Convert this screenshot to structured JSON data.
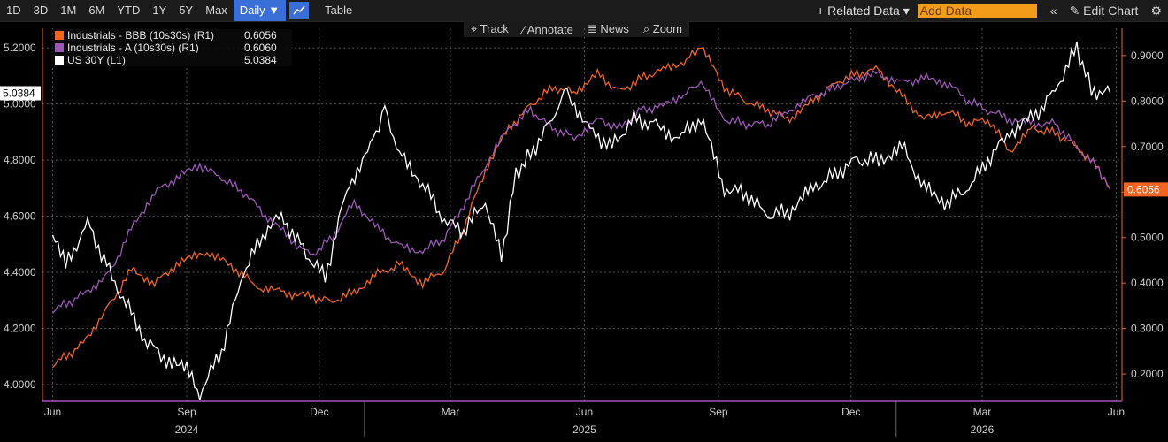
{
  "toolbar": {
    "periods": [
      "1D",
      "3D",
      "1M",
      "6M",
      "YTD",
      "1Y",
      "5Y",
      "Max"
    ],
    "frequency": "Daily ▼",
    "table": "Table",
    "related": "+ Related Data ▾",
    "add_data_placeholder": "Add Data",
    "collapse": "«",
    "edit": "✎ Edit Chart",
    "settings": "⚙"
  },
  "subtools": [
    "⌖ Track",
    "⁄ Annotate",
    "≣ News",
    "⌕ Zoom"
  ],
  "legend": [
    {
      "name": "Industrials - BBB (10s30s) (R1)",
      "value": "0.6056",
      "color": "#f26522"
    },
    {
      "name": "Industrials - A (10s30s) (R1)",
      "value": "0.6060",
      "color": "#9b59b6"
    },
    {
      "name": "US 30Y (L1)",
      "value": "5.0384",
      "color": "#ffffff"
    }
  ],
  "chart_data": {
    "type": "line",
    "x_months": [
      "Jun",
      "Sep",
      "Dec",
      "Mar",
      "Jun",
      "Sep",
      "Dec",
      "Mar",
      "Jun"
    ],
    "x_years": [
      "2024",
      "2025",
      "2026"
    ],
    "left_axis": {
      "ticks": [
        "4.0000",
        "4.2000",
        "4.4000",
        "4.6000",
        "4.8000",
        "5.0000",
        "5.2000"
      ],
      "range": [
        3.94,
        5.27
      ],
      "last_label": "5.0384"
    },
    "right_axis": {
      "ticks": [
        "0.2000",
        "0.3000",
        "0.4000",
        "0.5000",
        "0.6000",
        "0.7000",
        "0.8000",
        "0.9000"
      ],
      "range": [
        0.14,
        0.96
      ],
      "last_label": "0.6056"
    },
    "series": [
      {
        "name": "Industrials - BBB (10s30s) (R1)",
        "axis": "right",
        "color": "#f26522",
        "points": [
          [
            "2024-06-01",
            0.22
          ],
          [
            "2024-06-20",
            0.26
          ],
          [
            "2024-07-10",
            0.35
          ],
          [
            "2024-07-25",
            0.43
          ],
          [
            "2024-08-10",
            0.4
          ],
          [
            "2024-08-25",
            0.44
          ],
          [
            "2024-09-15",
            0.47
          ],
          [
            "2024-10-05",
            0.43
          ],
          [
            "2024-10-20",
            0.39
          ],
          [
            "2024-11-05",
            0.38
          ],
          [
            "2024-11-25",
            0.37
          ],
          [
            "2024-12-10",
            0.36
          ],
          [
            "2024-12-25",
            0.38
          ],
          [
            "2025-01-10",
            0.42
          ],
          [
            "2025-01-25",
            0.44
          ],
          [
            "2025-02-10",
            0.4
          ],
          [
            "2025-02-25",
            0.43
          ],
          [
            "2025-03-10",
            0.52
          ],
          [
            "2025-03-25",
            0.65
          ],
          [
            "2025-04-10",
            0.74
          ],
          [
            "2025-04-25",
            0.79
          ],
          [
            "2025-05-10",
            0.83
          ],
          [
            "2025-05-25",
            0.82
          ],
          [
            "2025-06-10",
            0.86
          ],
          [
            "2025-06-25",
            0.82
          ],
          [
            "2025-07-10",
            0.85
          ],
          [
            "2025-07-25",
            0.87
          ],
          [
            "2025-08-10",
            0.89
          ],
          [
            "2025-08-20",
            0.92
          ],
          [
            "2025-09-05",
            0.83
          ],
          [
            "2025-09-20",
            0.8
          ],
          [
            "2025-10-05",
            0.78
          ],
          [
            "2025-10-20",
            0.76
          ],
          [
            "2025-11-05",
            0.8
          ],
          [
            "2025-11-20",
            0.84
          ],
          [
            "2025-12-05",
            0.86
          ],
          [
            "2025-12-20",
            0.87
          ],
          [
            "2026-01-05",
            0.81
          ],
          [
            "2026-01-20",
            0.76
          ],
          [
            "2026-02-05",
            0.78
          ],
          [
            "2026-02-20",
            0.75
          ],
          [
            "2026-03-05",
            0.76
          ],
          [
            "2026-03-20",
            0.69
          ],
          [
            "2026-04-05",
            0.74
          ],
          [
            "2026-04-20",
            0.73
          ],
          [
            "2026-05-05",
            0.7
          ],
          [
            "2026-05-20",
            0.65
          ],
          [
            "2026-05-28",
            0.6056
          ]
        ]
      },
      {
        "name": "Industrials - A (10s30s) (R1)",
        "axis": "right",
        "color": "#9b59b6",
        "points": [
          [
            "2024-06-01",
            0.34
          ],
          [
            "2024-06-20",
            0.37
          ],
          [
            "2024-07-10",
            0.42
          ],
          [
            "2024-07-25",
            0.52
          ],
          [
            "2024-08-10",
            0.6
          ],
          [
            "2024-08-25",
            0.63
          ],
          [
            "2024-09-10",
            0.66
          ],
          [
            "2024-09-25",
            0.63
          ],
          [
            "2024-10-10",
            0.6
          ],
          [
            "2024-10-25",
            0.55
          ],
          [
            "2024-11-10",
            0.5
          ],
          [
            "2024-11-25",
            0.46
          ],
          [
            "2024-12-10",
            0.5
          ],
          [
            "2024-12-25",
            0.58
          ],
          [
            "2025-01-10",
            0.52
          ],
          [
            "2025-01-25",
            0.48
          ],
          [
            "2025-02-10",
            0.47
          ],
          [
            "2025-02-25",
            0.5
          ],
          [
            "2025-03-10",
            0.57
          ],
          [
            "2025-03-25",
            0.66
          ],
          [
            "2025-04-10",
            0.74
          ],
          [
            "2025-04-25",
            0.78
          ],
          [
            "2025-05-10",
            0.74
          ],
          [
            "2025-05-25",
            0.72
          ],
          [
            "2025-06-10",
            0.76
          ],
          [
            "2025-06-25",
            0.74
          ],
          [
            "2025-07-10",
            0.78
          ],
          [
            "2025-07-25",
            0.79
          ],
          [
            "2025-08-10",
            0.82
          ],
          [
            "2025-08-20",
            0.84
          ],
          [
            "2025-09-05",
            0.76
          ],
          [
            "2025-09-20",
            0.75
          ],
          [
            "2025-10-05",
            0.75
          ],
          [
            "2025-10-20",
            0.78
          ],
          [
            "2025-11-05",
            0.81
          ],
          [
            "2025-11-20",
            0.83
          ],
          [
            "2025-12-05",
            0.85
          ],
          [
            "2025-12-20",
            0.86
          ],
          [
            "2026-01-05",
            0.84
          ],
          [
            "2026-01-20",
            0.85
          ],
          [
            "2026-02-05",
            0.84
          ],
          [
            "2026-02-20",
            0.8
          ],
          [
            "2026-03-05",
            0.78
          ],
          [
            "2026-03-20",
            0.76
          ],
          [
            "2026-04-05",
            0.75
          ],
          [
            "2026-04-20",
            0.75
          ],
          [
            "2026-05-05",
            0.7
          ],
          [
            "2026-05-20",
            0.65
          ],
          [
            "2026-05-28",
            0.606
          ]
        ]
      },
      {
        "name": "US 30Y (L1)",
        "axis": "left",
        "color": "#ffffff",
        "points": [
          [
            "2024-06-01",
            4.55
          ],
          [
            "2024-06-10",
            4.42
          ],
          [
            "2024-06-25",
            4.58
          ],
          [
            "2024-07-10",
            4.4
          ],
          [
            "2024-07-25",
            4.25
          ],
          [
            "2024-08-05",
            4.15
          ],
          [
            "2024-08-20",
            4.08
          ],
          [
            "2024-09-01",
            4.05
          ],
          [
            "2024-09-10",
            3.97
          ],
          [
            "2024-09-25",
            4.12
          ],
          [
            "2024-10-10",
            4.4
          ],
          [
            "2024-10-25",
            4.55
          ],
          [
            "2024-11-05",
            4.6
          ],
          [
            "2024-11-20",
            4.48
          ],
          [
            "2024-12-05",
            4.38
          ],
          [
            "2024-12-20",
            4.7
          ],
          [
            "2025-01-05",
            4.85
          ],
          [
            "2025-01-15",
            4.98
          ],
          [
            "2025-01-25",
            4.82
          ],
          [
            "2025-02-10",
            4.72
          ],
          [
            "2025-02-25",
            4.58
          ],
          [
            "2025-03-10",
            4.55
          ],
          [
            "2025-03-25",
            4.65
          ],
          [
            "2025-04-05",
            4.45
          ],
          [
            "2025-04-15",
            4.75
          ],
          [
            "2025-04-25",
            4.82
          ],
          [
            "2025-05-10",
            4.95
          ],
          [
            "2025-05-20",
            5.05
          ],
          [
            "2025-06-05",
            4.9
          ],
          [
            "2025-06-20",
            4.85
          ],
          [
            "2025-07-05",
            4.95
          ],
          [
            "2025-07-20",
            4.92
          ],
          [
            "2025-08-05",
            4.88
          ],
          [
            "2025-08-20",
            4.95
          ],
          [
            "2025-09-05",
            4.7
          ],
          [
            "2025-09-20",
            4.68
          ],
          [
            "2025-10-05",
            4.6
          ],
          [
            "2025-10-20",
            4.62
          ],
          [
            "2025-11-05",
            4.7
          ],
          [
            "2025-11-20",
            4.75
          ],
          [
            "2025-12-05",
            4.8
          ],
          [
            "2025-12-20",
            4.8
          ],
          [
            "2026-01-05",
            4.85
          ],
          [
            "2026-01-20",
            4.7
          ],
          [
            "2026-02-05",
            4.65
          ],
          [
            "2026-02-20",
            4.7
          ],
          [
            "2026-03-05",
            4.8
          ],
          [
            "2026-03-20",
            4.9
          ],
          [
            "2026-04-05",
            4.95
          ],
          [
            "2026-04-20",
            5.05
          ],
          [
            "2026-05-05",
            5.2
          ],
          [
            "2026-05-15",
            5.05
          ],
          [
            "2026-05-28",
            5.0384
          ]
        ]
      }
    ]
  }
}
